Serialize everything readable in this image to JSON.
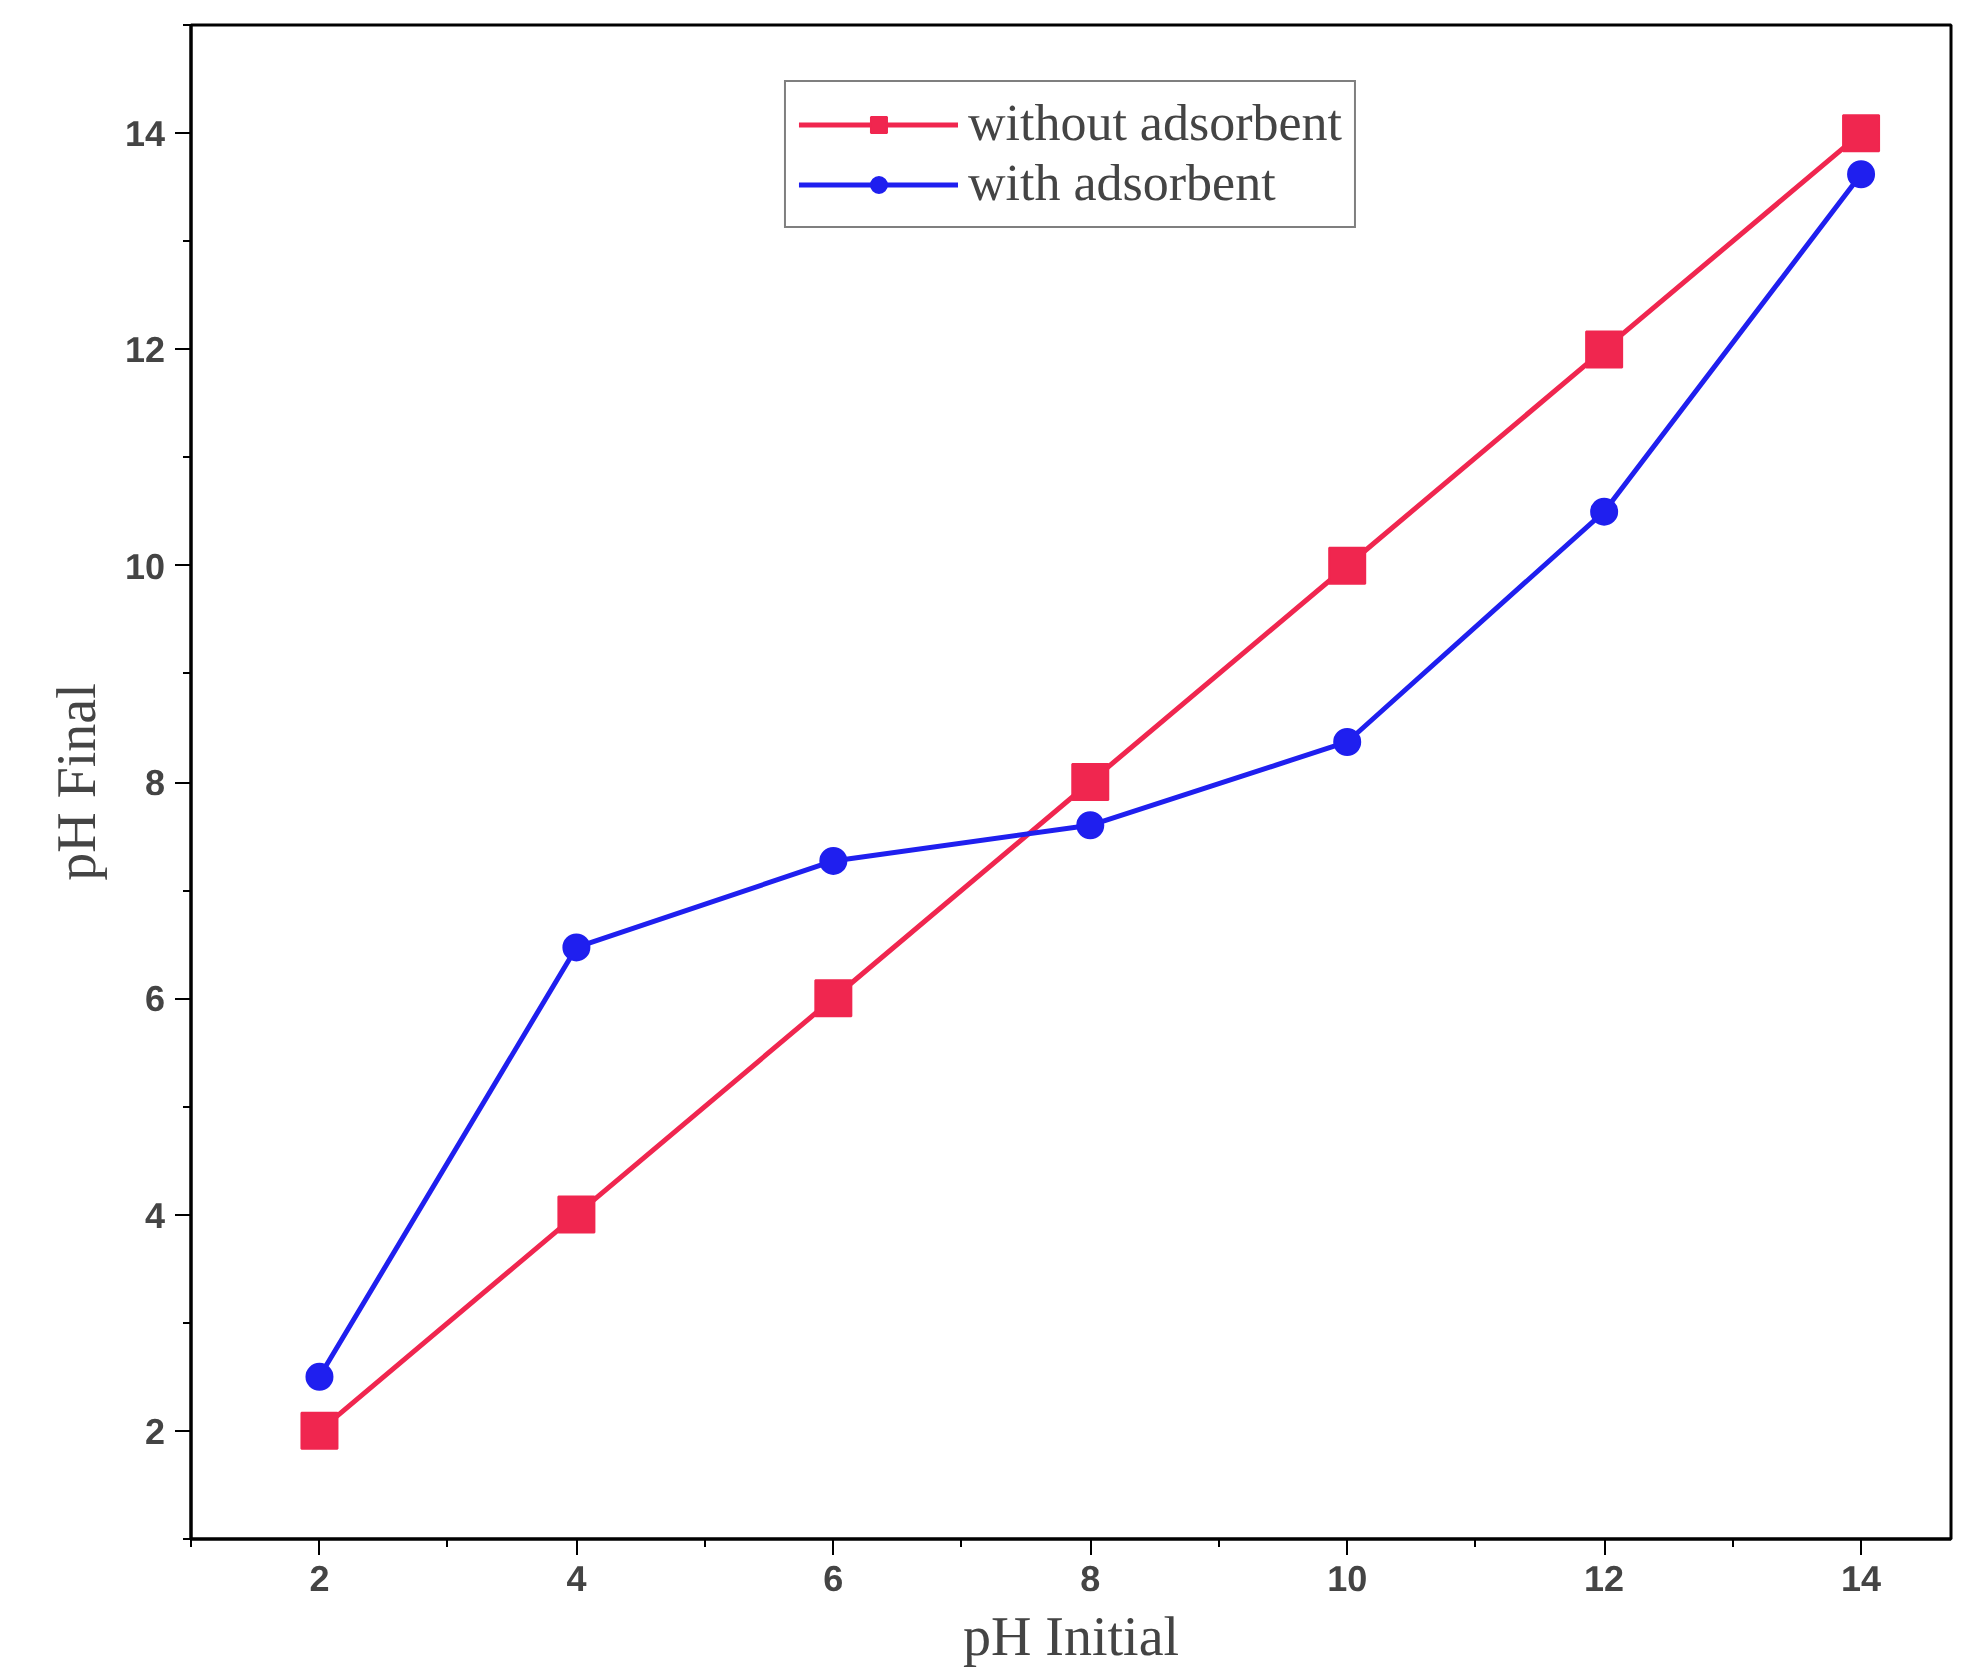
{
  "chart_data": {
    "type": "line",
    "xlabel": "pH Initial",
    "ylabel": "pH Final",
    "x": [
      2,
      4,
      6,
      8,
      10,
      12,
      14
    ],
    "series": [
      {
        "name": "without adsorbent",
        "color": "#f0264f",
        "marker": "square",
        "values": [
          2,
          4,
          6,
          8,
          10,
          12,
          14
        ]
      },
      {
        "name": "with adsorbent",
        "color": "#1f1fef",
        "marker": "circle",
        "values": [
          2.5,
          6.47,
          7.27,
          7.6,
          8.37,
          10.5,
          13.62
        ]
      }
    ],
    "xlim": [
      1,
      14.7
    ],
    "ylim": [
      1,
      15
    ],
    "xticks": [
      2,
      4,
      6,
      8,
      10,
      12,
      14
    ],
    "yticks": [
      2,
      4,
      6,
      8,
      10,
      12,
      14
    ],
    "grid": false,
    "legend": "top",
    "line_style": "solid"
  }
}
